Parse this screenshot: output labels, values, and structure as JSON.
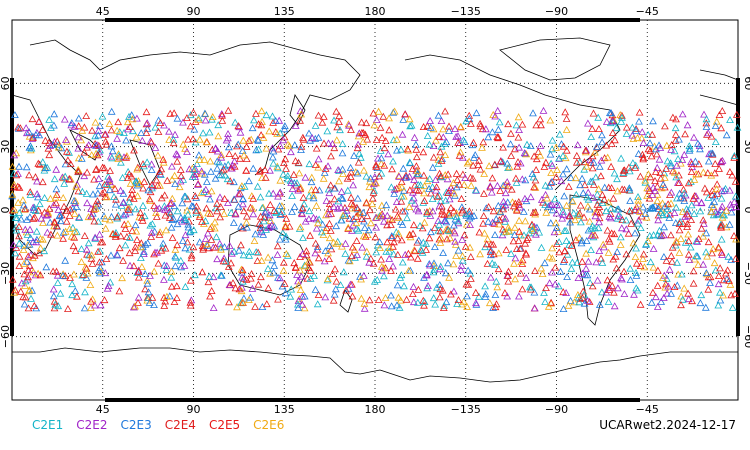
{
  "map": {
    "top_lon_labels": [
      "45",
      "90",
      "135",
      "180",
      "−135",
      "−90",
      "−45"
    ],
    "bottom_lon_labels": [
      "45",
      "90",
      "135",
      "180",
      "−135",
      "−90",
      "−45"
    ],
    "left_lat_labels": [
      "60",
      "30",
      "0",
      "−30",
      "−60"
    ],
    "right_lat_labels": [
      "60",
      "30",
      "0",
      "−30",
      "−60"
    ],
    "lon_grid": [
      45,
      90,
      135,
      180,
      225,
      270,
      315
    ],
    "lat_grid": [
      60,
      30,
      0,
      -30,
      -60
    ],
    "lon_range": [
      0,
      360
    ],
    "lat_range": [
      -90,
      90
    ],
    "grid": "dotted",
    "marker": "open-triangle",
    "observation_lat_band": [
      -47,
      47
    ]
  },
  "legend": {
    "items": [
      {
        "label": "C2E1",
        "color": "#14b4c8"
      },
      {
        "label": "C2E2",
        "color": "#a024c8"
      },
      {
        "label": "C2E3",
        "color": "#1e78dc"
      },
      {
        "label": "C2E4",
        "color": "#e01e1e"
      },
      {
        "label": "C2E5",
        "color": "#e81818"
      },
      {
        "label": "C2E6",
        "color": "#f0aa14"
      }
    ]
  },
  "product_label": "UCARwet2.2024-12-17",
  "colors": {
    "coastline": "#000000",
    "grid": "#000000",
    "background": "#ffffff"
  }
}
